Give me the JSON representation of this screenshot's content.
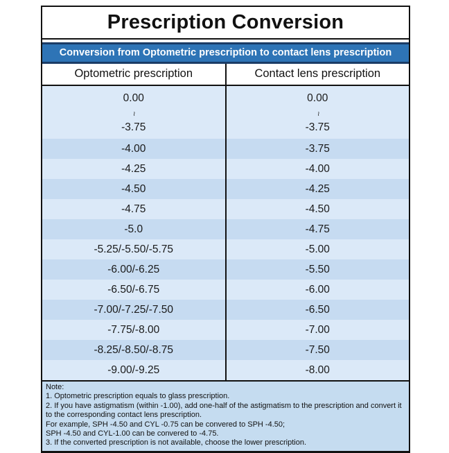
{
  "title": "Prescription Conversion",
  "banner": "Conversion from Optometric prescription to contact lens prescription",
  "columns": [
    "Optometric prescription",
    "Contact lens prescription"
  ],
  "range_separator": "~",
  "table": {
    "rows": [
      {
        "optometric": [
          "0.00",
          "~",
          "-3.75"
        ],
        "contact": [
          "0.00",
          "~",
          "-3.75"
        ]
      },
      {
        "optometric": [
          "-4.00"
        ],
        "contact": [
          "-3.75"
        ]
      },
      {
        "optometric": [
          "-4.25"
        ],
        "contact": [
          "-4.00"
        ]
      },
      {
        "optometric": [
          "-4.50"
        ],
        "contact": [
          "-4.25"
        ]
      },
      {
        "optometric": [
          "-4.75"
        ],
        "contact": [
          "-4.50"
        ]
      },
      {
        "optometric": [
          "-5.0"
        ],
        "contact": [
          "-4.75"
        ]
      },
      {
        "optometric": [
          "-5.25/-5.50/-5.75"
        ],
        "contact": [
          "-5.00"
        ]
      },
      {
        "optometric": [
          "-6.00/-6.25"
        ],
        "contact": [
          "-5.50"
        ]
      },
      {
        "optometric": [
          "-6.50/-6.75"
        ],
        "contact": [
          "-6.00"
        ]
      },
      {
        "optometric": [
          "-7.00/-7.25/-7.50"
        ],
        "contact": [
          "-6.50"
        ]
      },
      {
        "optometric": [
          "-7.75/-8.00"
        ],
        "contact": [
          "-7.00"
        ]
      },
      {
        "optometric": [
          "-8.25/-8.50/-8.75"
        ],
        "contact": [
          "-7.50"
        ]
      },
      {
        "optometric": [
          "-9.00/-9.25"
        ],
        "contact": [
          "-8.00"
        ]
      }
    ]
  },
  "notes": [
    "Note:",
    "1. Optometric prescription equals to glass prescription.",
    "2. If you have astigmatism (within -1.00), add one-half of the astigmatism to the prescription and convert it to the corresponding contact lens prescription.",
    "For example, SPH -4.50 and CYL -0.75 can be convered to SPH -4.50;",
    "SPH -4.50 and CYL-1.00 can be convered to -4.75.",
    "3. If the converted prescription is not available, choose the lower prescription."
  ],
  "colors": {
    "banner_blue": "#2e74b6",
    "banner_border_navy": "#1b3c66",
    "row_pale_blue": "#dbe9f8",
    "row_mid_blue": "#c6dbf1",
    "note_blue": "#c5dcf0",
    "border_black": "#111111"
  }
}
